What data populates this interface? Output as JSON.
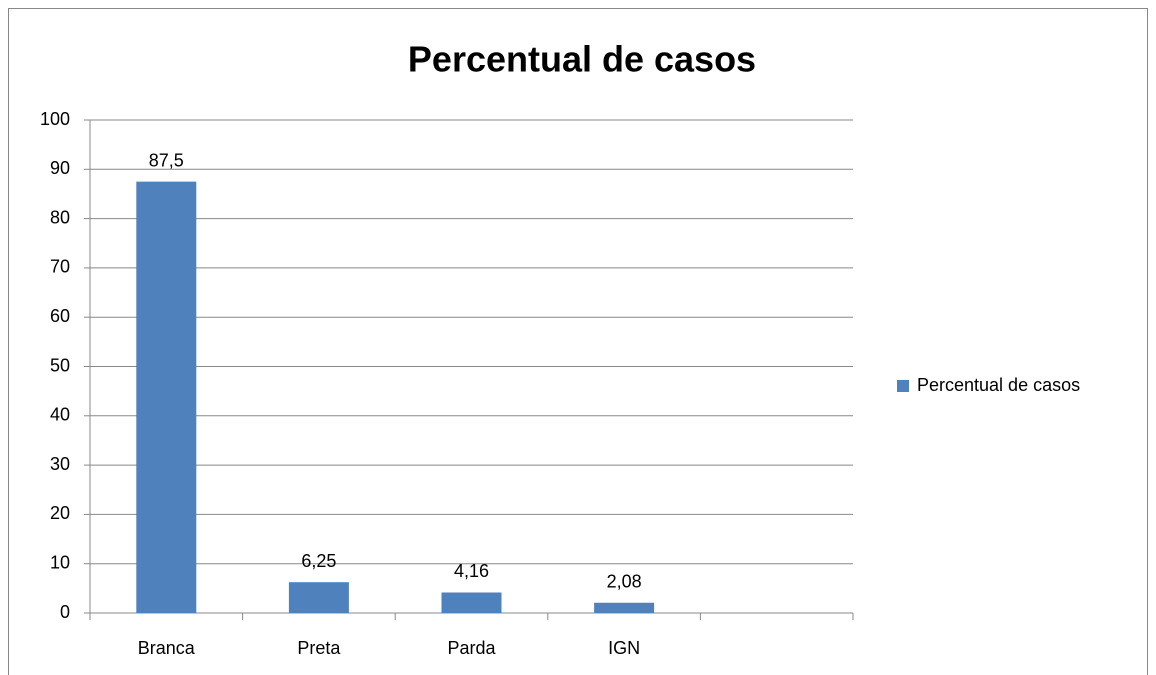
{
  "chart_data": {
    "type": "bar",
    "title": "Percentual de casos",
    "categories": [
      "Branca",
      "Preta",
      "Parda",
      "IGN",
      null
    ],
    "series": [
      {
        "name": "Percentual de casos",
        "color": "#4f81bd",
        "values": [
          87.5,
          6.25,
          4.16,
          2.08,
          null
        ],
        "value_labels": [
          "87,5",
          "6,25",
          "4,16",
          "2,08",
          null
        ]
      }
    ],
    "ylim": [
      0,
      100
    ],
    "yticks": [
      0,
      10,
      20,
      30,
      40,
      50,
      60,
      70,
      80,
      90,
      100
    ],
    "grid": true,
    "legend": "right"
  }
}
